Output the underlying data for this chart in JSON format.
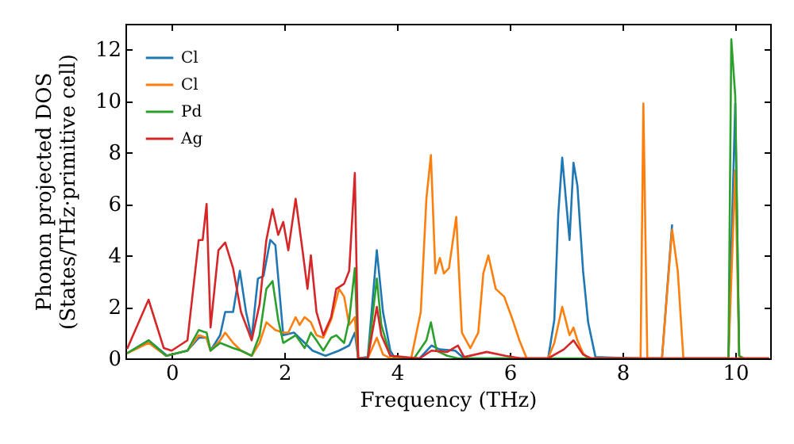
{
  "chart_data": {
    "type": "line",
    "xlabel": "Frequency (THz)",
    "ylabel": "Phonon projected DOS\n(States/THz·primitive cell)",
    "xlim": [
      -0.82,
      10.62
    ],
    "ylim": [
      0,
      13
    ],
    "xticks": [
      0,
      2,
      4,
      6,
      8,
      10
    ],
    "yticks": [
      0,
      2,
      4,
      6,
      8,
      10,
      12
    ],
    "legend": "top left",
    "grid": false,
    "series": [
      {
        "name": "Cl",
        "color": "#1f77b4",
        "x": [
          -0.79,
          -0.41,
          -0.08,
          0.28,
          0.48,
          0.62,
          0.69,
          0.86,
          0.95,
          1.09,
          1.21,
          1.32,
          1.42,
          1.53,
          1.63,
          1.75,
          1.84,
          1.98,
          2.17,
          2.36,
          2.5,
          2.73,
          2.97,
          3.15,
          3.25,
          3.31,
          3.48,
          3.64,
          3.75,
          3.88,
          3.96,
          4.4,
          4.61,
          4.75,
          5.03,
          5.19,
          6.68,
          6.79,
          6.86,
          6.93,
          7.06,
          7.13,
          7.2,
          7.3,
          7.39,
          7.52,
          8.32,
          8.37,
          8.44,
          8.7,
          8.88,
          8.98,
          9.08,
          9.88,
          10.0,
          10.07
        ],
        "values": [
          0.2,
          0.7,
          0.1,
          0.3,
          0.8,
          0.8,
          0.3,
          0.9,
          1.8,
          1.8,
          3.4,
          1.8,
          0.8,
          3.1,
          3.2,
          4.6,
          4.4,
          0.9,
          1.0,
          0.6,
          0.3,
          0.1,
          0.3,
          0.5,
          1.0,
          0,
          0.05,
          4.2,
          1.8,
          0.3,
          0,
          0,
          0.5,
          0.35,
          0.3,
          0,
          0,
          1.5,
          5.6,
          7.8,
          4.6,
          7.6,
          6.7,
          3.4,
          1.4,
          0.05,
          0,
          null,
          0,
          0,
          5.2,
          null,
          0,
          0,
          9.9,
          0.1
        ]
      },
      {
        "name": "Cl",
        "color": "#ff7f0e",
        "x": [
          -0.79,
          -0.41,
          -0.1,
          0.28,
          0.48,
          0.62,
          0.69,
          0.86,
          0.95,
          1.09,
          1.23,
          1.42,
          1.56,
          1.68,
          1.84,
          1.98,
          2.07,
          2.2,
          2.27,
          2.36,
          2.47,
          2.57,
          2.69,
          2.83,
          2.97,
          3.06,
          3.15,
          3.25,
          3.31,
          3.48,
          3.64,
          3.75,
          3.88,
          4.25,
          4.42,
          4.52,
          4.6,
          4.68,
          4.76,
          4.83,
          4.92,
          5.05,
          5.15,
          5.3,
          5.44,
          5.53,
          5.62,
          5.75,
          5.9,
          6.05,
          6.17,
          6.3,
          6.68,
          6.79,
          6.93,
          7.06,
          7.13,
          7.2,
          7.3,
          7.39,
          8.32,
          8.37,
          8.44,
          8.7,
          8.88,
          8.98,
          9.08,
          9.88,
          10.0,
          10.07,
          10.15,
          10.6
        ],
        "values": [
          0.2,
          0.6,
          0.1,
          0.3,
          0.9,
          0.8,
          0.3,
          0.7,
          1.0,
          0.6,
          0.3,
          0.1,
          0.6,
          1.4,
          1.1,
          1.0,
          1.0,
          1.6,
          1.3,
          1.6,
          1.4,
          0.9,
          0.8,
          1.5,
          2.7,
          2.4,
          1.3,
          1.6,
          0,
          0,
          0.8,
          0.15,
          0,
          0,
          1.8,
          6.2,
          7.9,
          3.3,
          3.9,
          3.3,
          3.5,
          5.5,
          1.0,
          0.4,
          1.0,
          3.3,
          4.0,
          2.7,
          2.4,
          1.5,
          0.7,
          0,
          0,
          0.6,
          2.0,
          0.9,
          1.2,
          0.7,
          0.2,
          0,
          0,
          9.9,
          0,
          0,
          5.0,
          3.4,
          0,
          0,
          7.3,
          0.1,
          0,
          0
        ]
      },
      {
        "name": "Pd",
        "color": "#2ca02c",
        "x": [
          -0.79,
          -0.41,
          -0.1,
          0.28,
          0.48,
          0.62,
          0.69,
          0.86,
          1.09,
          1.23,
          1.42,
          1.56,
          1.68,
          1.79,
          1.89,
          1.98,
          2.2,
          2.36,
          2.47,
          2.57,
          2.69,
          2.83,
          2.92,
          3.06,
          3.15,
          3.25,
          3.31,
          3.48,
          3.64,
          3.72,
          3.88,
          4.3,
          4.52,
          4.6,
          4.7,
          4.89,
          5.08,
          9.88,
          9.93,
          10.0,
          10.07,
          10.15,
          10.6
        ],
        "values": [
          0.2,
          0.7,
          0.1,
          0.3,
          1.1,
          1.0,
          0.3,
          0.6,
          0.4,
          0.3,
          0.1,
          0.9,
          2.7,
          3.0,
          1.5,
          0.6,
          0.9,
          0.4,
          1.0,
          0.7,
          0.3,
          0.8,
          0.9,
          0.6,
          1.5,
          3.5,
          0,
          0,
          3.1,
          1.3,
          0.1,
          0,
          0.7,
          1.4,
          0.3,
          0.1,
          0,
          0,
          12.4,
          10.2,
          0.1,
          0,
          0
        ]
      },
      {
        "name": "Ag",
        "color": "#d62728",
        "x": [
          -0.79,
          -0.41,
          -0.14,
          0,
          0.28,
          0.48,
          0.55,
          0.62,
          0.69,
          0.83,
          0.95,
          1.09,
          1.23,
          1.37,
          1.42,
          1.56,
          1.68,
          1.79,
          1.89,
          1.98,
          2.07,
          2.2,
          2.31,
          2.41,
          2.47,
          2.57,
          2.69,
          2.83,
          2.92,
          3.06,
          3.15,
          3.25,
          3.31,
          3.48,
          3.64,
          3.72,
          3.88,
          4.4,
          4.61,
          4.89,
          5.08,
          5.19,
          5.59,
          5.92,
          6.2,
          6.68,
          6.96,
          7.13,
          7.3,
          7.44,
          10.6
        ],
        "values": [
          0.37,
          2.28,
          0.4,
          0.3,
          0.7,
          4.6,
          4.6,
          6.0,
          1.2,
          4.2,
          4.5,
          3.5,
          1.8,
          1.0,
          0.7,
          2.1,
          4.6,
          5.8,
          4.8,
          5.3,
          4.2,
          6.2,
          4.4,
          2.7,
          4.0,
          1.8,
          0.9,
          1.6,
          2.7,
          2.9,
          3.4,
          7.2,
          0,
          0,
          2.0,
          0.9,
          0.1,
          0,
          0.3,
          0.25,
          0.5,
          0.05,
          0.25,
          0.1,
          0,
          0,
          0.35,
          0.7,
          0.15,
          0,
          0
        ]
      }
    ]
  }
}
